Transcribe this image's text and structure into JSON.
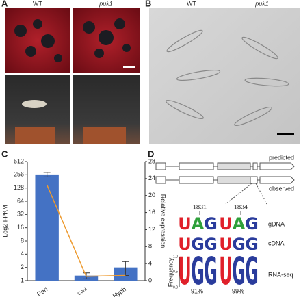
{
  "panels": {
    "a": {
      "label": "A",
      "wt": "WT",
      "mutant": "puk1"
    },
    "b": {
      "label": "B",
      "wt": "WT",
      "mutant": "puk1"
    },
    "d": {
      "label": "D",
      "predicted": "predicted",
      "observed": "observed",
      "positions": [
        "1831",
        "1834"
      ],
      "rows": [
        "gDNA",
        "cDNA",
        "RNA-seq"
      ],
      "gdna": [
        [
          "U",
          "A",
          "G"
        ],
        [
          "U",
          "A",
          "G"
        ]
      ],
      "cdna": [
        [
          "U",
          "G",
          "G"
        ],
        [
          "U",
          "G",
          "G"
        ]
      ],
      "rnaseq": [
        [
          "U",
          "G",
          "G"
        ],
        [
          "U",
          "G",
          "G"
        ]
      ],
      "frequency_axis": "Frequency",
      "frequency_ticks": [
        "0.0",
        "0.5",
        "1.0"
      ],
      "percent": [
        "91%",
        "99%"
      ]
    }
  },
  "chart_data": {
    "type": "bar",
    "panel_label": "C",
    "categories": [
      "Peri",
      "Coni",
      "Hyph"
    ],
    "y_label": "Log2 FPKM",
    "y2_label": "Relative expression",
    "log_y": true,
    "ylim": [
      1,
      512
    ],
    "yticks": [
      1,
      2,
      4,
      8,
      16,
      32,
      64,
      128,
      256,
      512
    ],
    "y2lim": [
      0,
      28
    ],
    "y2ticks": [
      0,
      4,
      8,
      12,
      16,
      20,
      24,
      28
    ],
    "series": [
      {
        "type": "bar",
        "color": "#4472c4",
        "values": [
          260,
          1.3,
          2
        ],
        "errors": [
          30,
          0.2,
          0.7
        ]
      },
      {
        "type": "line",
        "axis": "y2",
        "color": "#ed9a2f",
        "values": [
          22.5,
          1,
          1.2
        ]
      }
    ]
  }
}
